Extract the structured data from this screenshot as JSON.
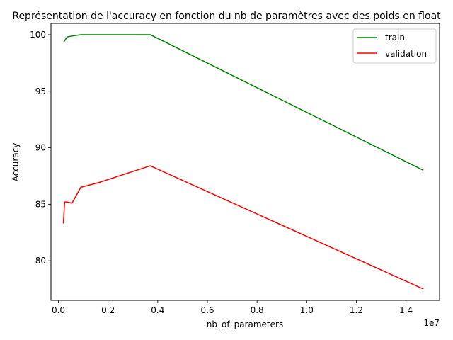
{
  "chart_data": {
    "type": "line",
    "title": "Représentation de l'accuracy en fonction du nb de paramètres avec des poids en float",
    "xlabel": "nb_of_parameters",
    "ylabel": "Accuracy",
    "x_offset_label": "1e7",
    "xlim": [
      -300000,
      15350000
    ],
    "ylim": [
      76.5,
      101.0
    ],
    "x_ticks": [
      0,
      2000000,
      4000000,
      6000000,
      8000000,
      10000000,
      12000000,
      14000000
    ],
    "x_tick_labels": [
      "0.0",
      "0.2",
      "0.4",
      "0.6",
      "0.8",
      "1.0",
      "1.2",
      "1.4"
    ],
    "y_ticks": [
      80,
      85,
      90,
      95,
      100
    ],
    "y_tick_labels": [
      "80",
      "85",
      "90",
      "95",
      "100"
    ],
    "grid": false,
    "legend_position": "top-right",
    "series": [
      {
        "name": "train",
        "color": "#008000",
        "x": [
          200000,
          350000,
          600000,
          900000,
          1600000,
          3700000,
          14700000
        ],
        "y": [
          99.3,
          99.8,
          99.9,
          100.0,
          100.0,
          100.0,
          88.0
        ]
      },
      {
        "name": "validation",
        "color": "#ff0000",
        "x": [
          200000,
          250000,
          350000,
          550000,
          900000,
          1600000,
          3700000,
          14700000
        ],
        "y": [
          83.3,
          85.2,
          85.2,
          85.1,
          86.5,
          86.9,
          88.4,
          77.5
        ]
      }
    ]
  }
}
